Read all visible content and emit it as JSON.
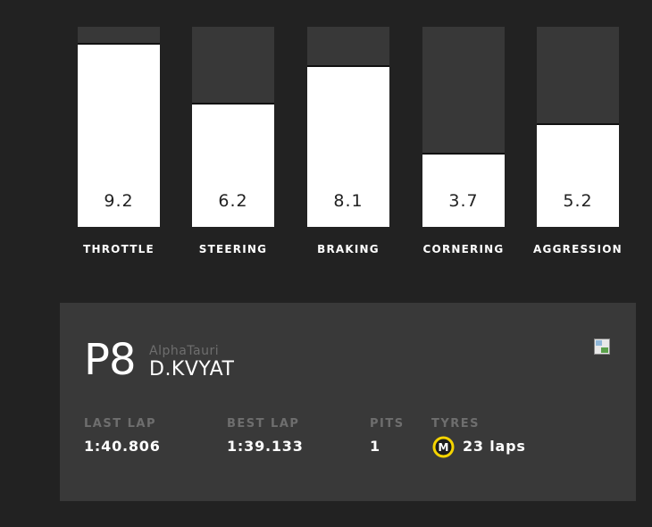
{
  "stats": [
    {
      "label": "THROTTLE",
      "value": "9.2",
      "fraction": 0.92
    },
    {
      "label": "STEERING",
      "value": "6.2",
      "fraction": 0.62
    },
    {
      "label": "BRAKING",
      "value": "8.1",
      "fraction": 0.81
    },
    {
      "label": "CORNERING",
      "value": "3.7",
      "fraction": 0.37
    },
    {
      "label": "AGGRESSION",
      "value": "5.2",
      "fraction": 0.52
    }
  ],
  "driver_card": {
    "position": "P8",
    "team": "AlphaTauri",
    "driver": "D.KVYAT",
    "last_lap_label": "LAST LAP",
    "last_lap_value": "1:40.806",
    "best_lap_label": "BEST LAP",
    "best_lap_value": "1:39.133",
    "pits_label": "PITS",
    "pits_value": "1",
    "tyres_label": "TYRES",
    "tyres_compound": "M",
    "tyres_value": "23 laps",
    "tyre_color": "#f5d400",
    "image_icon": "broken-image-icon"
  }
}
